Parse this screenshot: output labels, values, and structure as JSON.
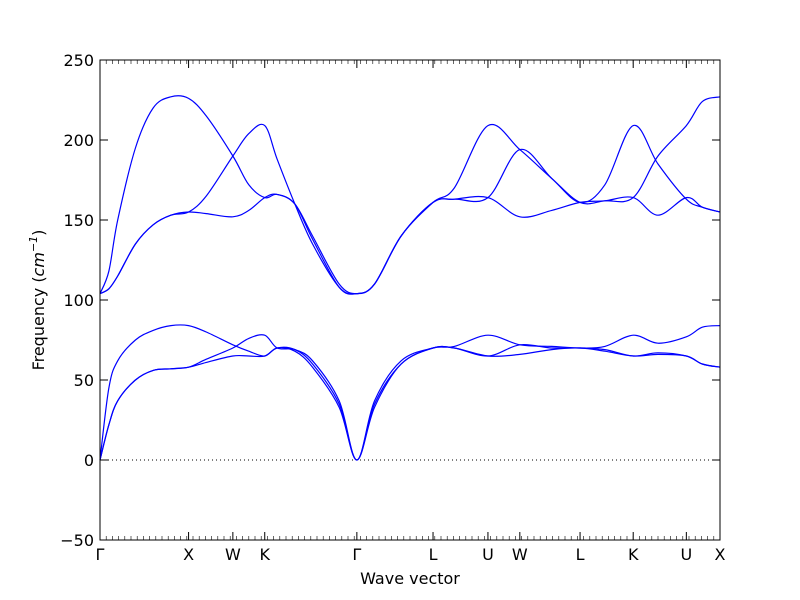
{
  "chart_data": {
    "type": "line",
    "xlabel": "Wave vector",
    "ylabel_text": "Frequency (",
    "ylabel_unit_base": "cm",
    "ylabel_unit_exp": "−1",
    "ylabel_close": ")",
    "ylim": [
      -50,
      250
    ],
    "yticks": [
      -50,
      0,
      50,
      100,
      150,
      200,
      250
    ],
    "ytick_labels": [
      "−50",
      "0",
      "50",
      "100",
      "150",
      "200",
      "250"
    ],
    "xlim": [
      0,
      3.5
    ],
    "xticks": [
      {
        "pos": 0.0,
        "label": "Γ"
      },
      {
        "pos": 0.5,
        "label": "X"
      },
      {
        "pos": 0.75,
        "label": "W"
      },
      {
        "pos": 0.93,
        "label": "K"
      },
      {
        "pos": 1.45,
        "label": "Γ"
      },
      {
        "pos": 1.88,
        "label": "L"
      },
      {
        "pos": 2.19,
        "label": "U"
      },
      {
        "pos": 2.37,
        "label": "W"
      },
      {
        "pos": 2.71,
        "label": "L"
      },
      {
        "pos": 3.01,
        "label": "K"
      },
      {
        "pos": 3.31,
        "label": "U"
      },
      {
        "pos": 3.5,
        "label": "X"
      }
    ],
    "zero_line": true,
    "line_color": "#0000ff",
    "zero_line_color": "#000000",
    "series": [
      {
        "points": [
          [
            0,
            0
          ],
          [
            0.05,
            22
          ],
          [
            0.1,
            37
          ],
          [
            0.2,
            50
          ],
          [
            0.3,
            56
          ],
          [
            0.4,
            57
          ],
          [
            0.5,
            58
          ],
          [
            0.6,
            61
          ],
          [
            0.75,
            65
          ],
          [
            0.84,
            65
          ],
          [
            0.93,
            65
          ],
          [
            1.0,
            70
          ],
          [
            1.1,
            69
          ],
          [
            1.2,
            60
          ],
          [
            1.35,
            35
          ],
          [
            1.45,
            0
          ],
          [
            1.55,
            35
          ],
          [
            1.7,
            60
          ],
          [
            1.88,
            70
          ],
          [
            2.0,
            70
          ],
          [
            2.19,
            65
          ],
          [
            2.37,
            66
          ],
          [
            2.55,
            69
          ],
          [
            2.71,
            70
          ],
          [
            2.85,
            68
          ],
          [
            3.01,
            65
          ],
          [
            3.15,
            66
          ],
          [
            3.31,
            65
          ],
          [
            3.4,
            60
          ],
          [
            3.5,
            58
          ]
        ]
      },
      {
        "points": [
          [
            0,
            0
          ],
          [
            0.05,
            22
          ],
          [
            0.1,
            37
          ],
          [
            0.2,
            50
          ],
          [
            0.3,
            56
          ],
          [
            0.4,
            57
          ],
          [
            0.5,
            58
          ],
          [
            0.6,
            63
          ],
          [
            0.75,
            70
          ],
          [
            0.84,
            76
          ],
          [
            0.93,
            78
          ],
          [
            1.0,
            70
          ],
          [
            1.1,
            69
          ],
          [
            1.2,
            62
          ],
          [
            1.35,
            37
          ],
          [
            1.45,
            0
          ],
          [
            1.55,
            37
          ],
          [
            1.7,
            62
          ],
          [
            1.88,
            70
          ],
          [
            2.0,
            71
          ],
          [
            2.19,
            78
          ],
          [
            2.37,
            72
          ],
          [
            2.55,
            71
          ],
          [
            2.71,
            70
          ],
          [
            2.85,
            71
          ],
          [
            3.01,
            78
          ],
          [
            3.15,
            73
          ],
          [
            3.31,
            77
          ],
          [
            3.4,
            83
          ],
          [
            3.5,
            84
          ]
        ]
      },
      {
        "points": [
          [
            0,
            0
          ],
          [
            0.05,
            45
          ],
          [
            0.1,
            62
          ],
          [
            0.2,
            75
          ],
          [
            0.3,
            81
          ],
          [
            0.4,
            84
          ],
          [
            0.5,
            84
          ],
          [
            0.6,
            80
          ],
          [
            0.75,
            72
          ],
          [
            0.84,
            68
          ],
          [
            0.93,
            65
          ],
          [
            1.0,
            70
          ],
          [
            1.1,
            68
          ],
          [
            1.2,
            58
          ],
          [
            1.35,
            33
          ],
          [
            1.45,
            0
          ],
          [
            1.55,
            33
          ],
          [
            1.7,
            60
          ],
          [
            1.88,
            70
          ],
          [
            2.0,
            70
          ],
          [
            2.19,
            65
          ],
          [
            2.37,
            72
          ],
          [
            2.55,
            70
          ],
          [
            2.71,
            70
          ],
          [
            2.85,
            69
          ],
          [
            3.01,
            65
          ],
          [
            3.15,
            67
          ],
          [
            3.31,
            65
          ],
          [
            3.4,
            60
          ],
          [
            3.5,
            58
          ]
        ]
      },
      {
        "points": [
          [
            0,
            104
          ],
          [
            0.05,
            107
          ],
          [
            0.1,
            115
          ],
          [
            0.2,
            135
          ],
          [
            0.3,
            147
          ],
          [
            0.4,
            153
          ],
          [
            0.5,
            155
          ],
          [
            0.6,
            154
          ],
          [
            0.75,
            152
          ],
          [
            0.84,
            156
          ],
          [
            0.93,
            164
          ],
          [
            1.0,
            166
          ],
          [
            1.1,
            160
          ],
          [
            1.2,
            140
          ],
          [
            1.35,
            110
          ],
          [
            1.45,
            104
          ],
          [
            1.55,
            110
          ],
          [
            1.7,
            140
          ],
          [
            1.88,
            161
          ],
          [
            2.0,
            163
          ],
          [
            2.19,
            164
          ],
          [
            2.37,
            152
          ],
          [
            2.55,
            156
          ],
          [
            2.71,
            161
          ],
          [
            2.85,
            162
          ],
          [
            3.01,
            164
          ],
          [
            3.15,
            153
          ],
          [
            3.31,
            164
          ],
          [
            3.4,
            158
          ],
          [
            3.5,
            155
          ]
        ]
      },
      {
        "points": [
          [
            0,
            104
          ],
          [
            0.05,
            107
          ],
          [
            0.1,
            115
          ],
          [
            0.2,
            135
          ],
          [
            0.3,
            147
          ],
          [
            0.4,
            153
          ],
          [
            0.5,
            155
          ],
          [
            0.6,
            165
          ],
          [
            0.75,
            190
          ],
          [
            0.84,
            204
          ],
          [
            0.93,
            209
          ],
          [
            1.0,
            188
          ],
          [
            1.1,
            160
          ],
          [
            1.2,
            135
          ],
          [
            1.35,
            108
          ],
          [
            1.45,
            104
          ],
          [
            1.55,
            110
          ],
          [
            1.7,
            140
          ],
          [
            1.88,
            161
          ],
          [
            2.0,
            170
          ],
          [
            2.19,
            209
          ],
          [
            2.37,
            194
          ],
          [
            2.55,
            176
          ],
          [
            2.71,
            161
          ],
          [
            2.85,
            172
          ],
          [
            3.01,
            209
          ],
          [
            3.15,
            185
          ],
          [
            3.31,
            163
          ],
          [
            3.4,
            158
          ],
          [
            3.5,
            155
          ]
        ]
      },
      {
        "points": [
          [
            0,
            104
          ],
          [
            0.05,
            118
          ],
          [
            0.1,
            150
          ],
          [
            0.2,
            195
          ],
          [
            0.3,
            220
          ],
          [
            0.4,
            227
          ],
          [
            0.5,
            226
          ],
          [
            0.6,
            215
          ],
          [
            0.75,
            190
          ],
          [
            0.84,
            172
          ],
          [
            0.93,
            164
          ],
          [
            1.0,
            166
          ],
          [
            1.1,
            160
          ],
          [
            1.2,
            138
          ],
          [
            1.35,
            108
          ],
          [
            1.45,
            104
          ],
          [
            1.55,
            110
          ],
          [
            1.7,
            140
          ],
          [
            1.88,
            161
          ],
          [
            2.0,
            163
          ],
          [
            2.19,
            164
          ],
          [
            2.37,
            194
          ],
          [
            2.55,
            176
          ],
          [
            2.71,
            161
          ],
          [
            2.85,
            162
          ],
          [
            3.01,
            164
          ],
          [
            3.15,
            190
          ],
          [
            3.31,
            209
          ],
          [
            3.4,
            224
          ],
          [
            3.5,
            227
          ]
        ]
      }
    ]
  }
}
